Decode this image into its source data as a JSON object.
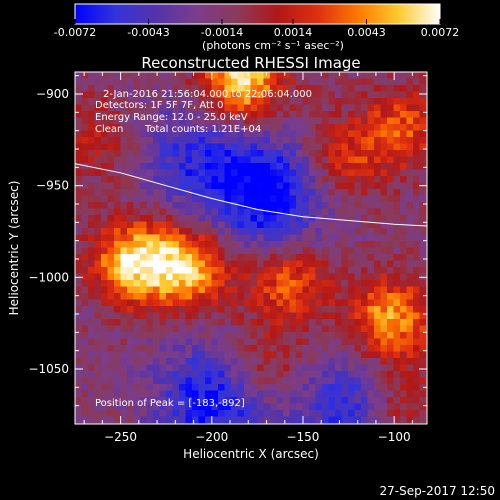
{
  "colorbar": {
    "ticks": [
      "-0.0072",
      "-0.0043",
      "-0.0014",
      "0.0014",
      "0.0043",
      "0.0072"
    ],
    "tick_values": [
      -0.0072,
      -0.0043,
      -0.0014,
      0.0014,
      0.0043,
      0.0072
    ],
    "unit_label": "(photons cm⁻² s⁻¹ asec⁻²)"
  },
  "chart_data": {
    "type": "heatmap",
    "title": "Reconstructed RHESSI Image",
    "xlabel": "Heliocentric X (arcsec)",
    "ylabel": "Heliocentric Y (arcsec)",
    "xlim": [
      -275,
      -82
    ],
    "ylim": [
      -1080,
      -888
    ],
    "x_ticks": [
      -250,
      -200,
      -150,
      -100
    ],
    "x_tick_labels": [
      "−250",
      "−200",
      "−150",
      "−100"
    ],
    "y_ticks": [
      -900,
      -950,
      -1000,
      -1050
    ],
    "y_tick_labels": [
      "−900",
      "−950",
      "−1000",
      "−1050"
    ],
    "zlim": [
      -0.0072,
      0.0072
    ],
    "peak": {
      "x": -183,
      "y": -892
    },
    "emission_sources": [
      {
        "x": -243,
        "y": -990,
        "value": 0.0068
      },
      {
        "x": -213,
        "y": -993,
        "value": 0.006
      },
      {
        "x": -160,
        "y": -1000,
        "value": 0.0045
      },
      {
        "x": -105,
        "y": -1021,
        "value": 0.0058
      },
      {
        "x": -185,
        "y": -893,
        "value": 0.0072
      },
      {
        "x": -130,
        "y": -935,
        "value": 0.0034
      },
      {
        "x": -98,
        "y": -918,
        "value": 0.0038
      },
      {
        "x": -264,
        "y": -925,
        "value": 0.0022
      },
      {
        "x": -98,
        "y": -1068,
        "value": 0.0036
      },
      {
        "x": -172,
        "y": -1047,
        "value": 0.0028
      }
    ],
    "negative_regions": [
      {
        "x": -170,
        "y": -955,
        "value": -0.0055
      },
      {
        "x": -200,
        "y": -1065,
        "value": -0.005
      },
      {
        "x": -125,
        "y": -1070,
        "value": -0.0042
      },
      {
        "x": -210,
        "y": -935,
        "value": -0.0035
      }
    ],
    "limb_curve": [
      {
        "x": -275,
        "y": -938
      },
      {
        "x": -250,
        "y": -943
      },
      {
        "x": -225,
        "y": -950
      },
      {
        "x": -200,
        "y": -957
      },
      {
        "x": -175,
        "y": -963
      },
      {
        "x": -150,
        "y": -967
      },
      {
        "x": -125,
        "y": -969
      },
      {
        "x": -100,
        "y": -971
      },
      {
        "x": -82,
        "y": -972
      }
    ],
    "grid": false
  },
  "annotations": {
    "time_range": "2-Jan-2016 21:56:04.000 to 22:06:04.000",
    "detectors": "Detectors: 1F 5F 7F, Att 0",
    "energy_range": "Energy Range: 12.0 - 25.0 keV",
    "clean_label": "Clean",
    "total_counts": "Total counts: 1.21E+04",
    "peak_position": "Position of Peak = [-183,-892]"
  },
  "footer": {
    "timestamp": "27-Sep-2017 12:50"
  },
  "colors": {
    "background": "#000000",
    "colormap": [
      "#0000ff",
      "#3333dd",
      "#5533aa",
      "#7a3d8c",
      "#8a3a5a",
      "#b01818",
      "#e03010",
      "#ff7a00",
      "#ffcc30",
      "#ffffff"
    ]
  }
}
